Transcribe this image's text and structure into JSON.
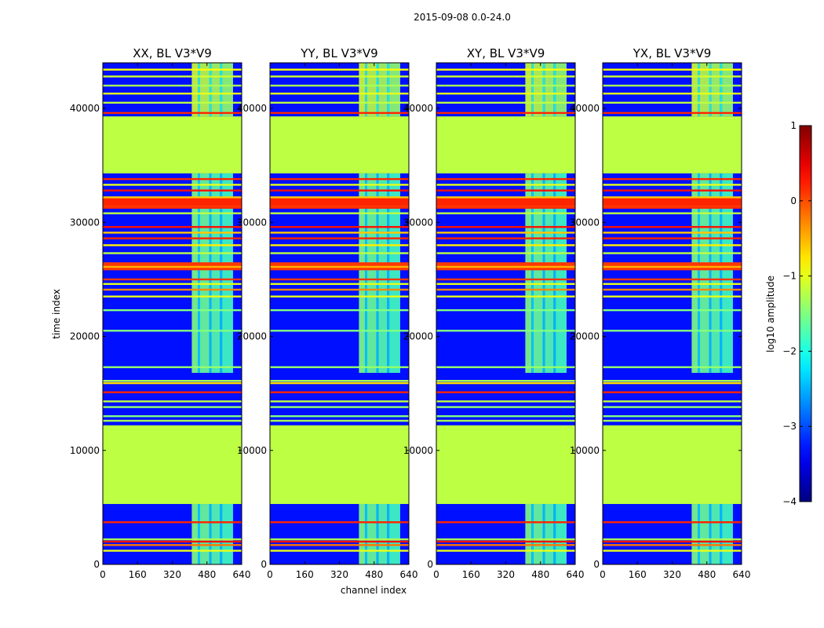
{
  "figure_title": "2015-09-08 0.0-24.0",
  "chart_data": {
    "type": "heatmap",
    "xlabel": "channel index",
    "ylabel": "time index",
    "xlim": [
      0,
      640
    ],
    "ylim": [
      0,
      44000
    ],
    "xticks": [
      0,
      160,
      320,
      480,
      640
    ],
    "yticks": [
      0,
      10000,
      20000,
      30000,
      40000
    ],
    "panels": [
      {
        "title": "XX, BL V3*V9"
      },
      {
        "title": "YY, BL V3*V9"
      },
      {
        "title": "XY, BL V3*V9"
      },
      {
        "title": "YX, BL V3*V9"
      }
    ],
    "colorbar": {
      "label": "log10 amplitude",
      "range": [
        -4,
        1
      ],
      "ticks": [
        1,
        0,
        -1,
        -2,
        -3,
        -4
      ],
      "colormap": "jet"
    },
    "flagged_time_ranges": [
      [
        5300,
        12200
      ],
      [
        34300,
        39300
      ]
    ],
    "flagged_level": -1.2,
    "background_level": -3.3,
    "rfi_channel_range": [
      410,
      600
    ],
    "rfi_time_ranges": [
      [
        0,
        5300
      ],
      [
        16800,
        34300
      ],
      [
        39300,
        44000
      ]
    ],
    "bright_rows": [
      {
        "t": 1200,
        "level": -1.0
      },
      {
        "t": 1700,
        "level": -0.2
      },
      {
        "t": 2000,
        "level": 0.3
      },
      {
        "t": 2200,
        "level": -1.3
      },
      {
        "t": 3700,
        "level": 0.2
      },
      {
        "t": 12600,
        "level": -1.3
      },
      {
        "t": 13000,
        "level": -1.5
      },
      {
        "t": 13800,
        "level": -1.4
      },
      {
        "t": 14300,
        "level": -1.2
      },
      {
        "t": 15100,
        "level": 0.2
      },
      {
        "t": 15900,
        "level": -0.7
      },
      {
        "t": 16100,
        "level": -1.3
      },
      {
        "t": 17300,
        "level": -1.4
      },
      {
        "t": 20500,
        "level": -1.5
      },
      {
        "t": 22300,
        "level": -1.5
      },
      {
        "t": 23500,
        "level": -1.0
      },
      {
        "t": 24100,
        "level": -0.3
      },
      {
        "t": 24600,
        "level": -1.0
      },
      {
        "t": 25000,
        "level": 0.1
      },
      {
        "t": 26100,
        "level": -0.5
      },
      {
        "t": 27300,
        "level": -1.2
      },
      {
        "t": 28000,
        "level": -0.8
      },
      {
        "t": 28600,
        "level": 0.2
      },
      {
        "t": 29100,
        "level": -0.6
      },
      {
        "t": 29600,
        "level": 0.3
      },
      {
        "t": 30800,
        "level": -1.2
      },
      {
        "t": 31400,
        "level": 0.1
      },
      {
        "t": 32200,
        "level": -0.6
      },
      {
        "t": 32800,
        "level": 0.3
      },
      {
        "t": 33300,
        "level": -1.0
      },
      {
        "t": 33800,
        "level": 0.2
      },
      {
        "t": 39600,
        "level": 0.2
      },
      {
        "t": 40500,
        "level": -1.2
      },
      {
        "t": 41300,
        "level": -1.0
      },
      {
        "t": 42000,
        "level": -1.3
      },
      {
        "t": 42800,
        "level": -1.1
      },
      {
        "t": 43400,
        "level": -0.9
      }
    ],
    "thick_bands": [
      {
        "t0": 31200,
        "t1": 32200,
        "level": 0.2
      },
      {
        "t0": 25800,
        "t1": 26500,
        "level": 0.1
      }
    ]
  }
}
